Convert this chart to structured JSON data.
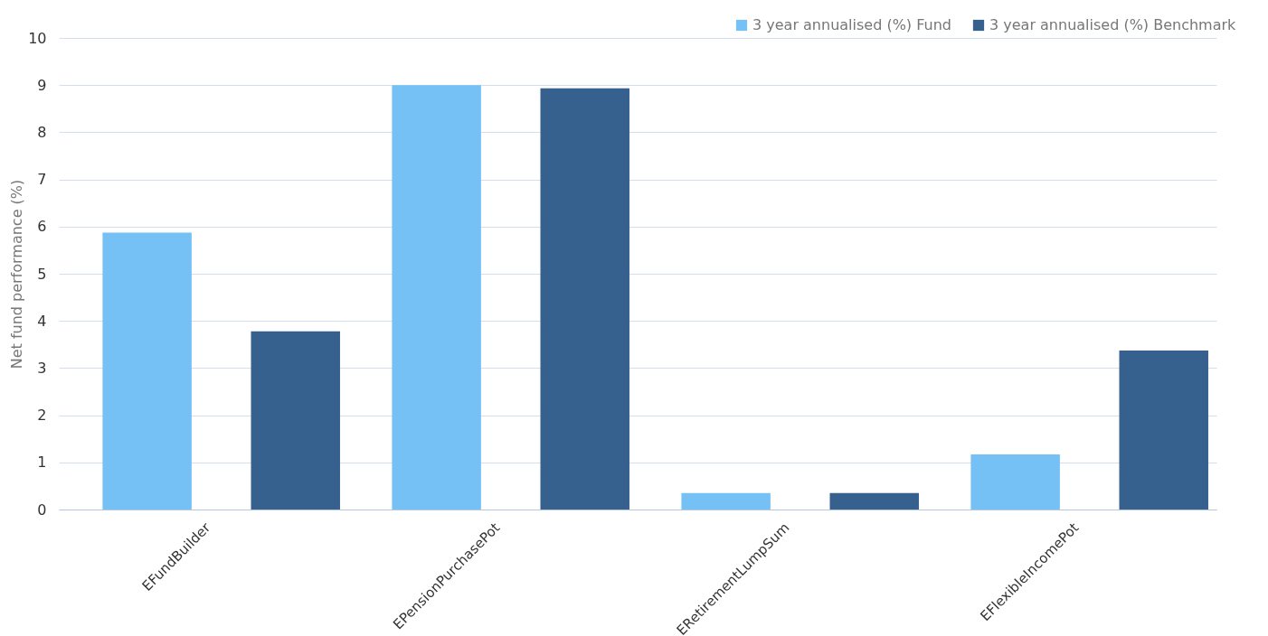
{
  "chart_data": {
    "type": "bar",
    "ylabel": "Net fund performance (%)",
    "categories": [
      "EFundBuilder",
      "EPensionPurchasePot",
      "ERetirementLumpSum",
      "EFlexibleIncomePot"
    ],
    "series": [
      {
        "name": "3 year annualised (%) Fund",
        "color": "#75c1f5",
        "values": [
          5.87,
          9.0,
          0.35,
          1.17
        ]
      },
      {
        "name": "3 year annualised (%) Benchmark",
        "color": "#36608e",
        "values": [
          3.78,
          8.93,
          0.35,
          3.37
        ]
      }
    ],
    "ylim": [
      0,
      10
    ],
    "yticks": [
      0,
      1,
      2,
      3,
      4,
      5,
      6,
      7,
      8,
      9,
      10
    ],
    "grid": "y",
    "legend": "top right"
  }
}
